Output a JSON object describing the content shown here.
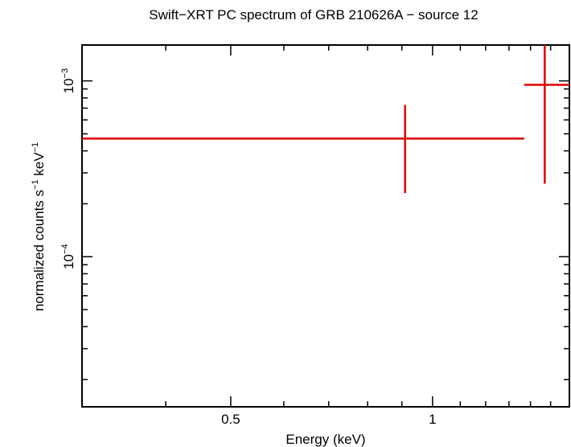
{
  "chart_data": {
    "type": "scatter",
    "title": "Swift−XRT PC spectrum of GRB 210626A − source 12",
    "xlabel": "Energy (keV)",
    "ylabel": {
      "base": "normalized counts s",
      "exp1": "−1",
      "mid": " keV",
      "exp2": "−1"
    },
    "x_scale": "log",
    "y_scale": "log",
    "xlim": [
      0.3,
      1.6
    ],
    "ylim": [
      1.4e-05,
      0.0016
    ],
    "x_tick_labels": [
      {
        "value": 0.5,
        "text": "0.5"
      },
      {
        "value": 1,
        "text": "1"
      }
    ],
    "y_tick_labels": [
      {
        "value": 0.001,
        "base": "10",
        "exp": "−3"
      },
      {
        "value": 0.0001,
        "base": "10",
        "exp": "−4"
      }
    ],
    "series_color": "#e00000",
    "points": [
      {
        "x": 0.91,
        "x_lo": 0.3,
        "x_hi": 1.37,
        "y": 0.00047,
        "y_lo": 0.00023,
        "y_hi": 0.00073
      },
      {
        "x": 1.47,
        "x_lo": 1.37,
        "x_hi": 1.6,
        "y": 0.00095,
        "y_lo": 0.00026,
        "y_hi": 0.0016
      }
    ]
  }
}
